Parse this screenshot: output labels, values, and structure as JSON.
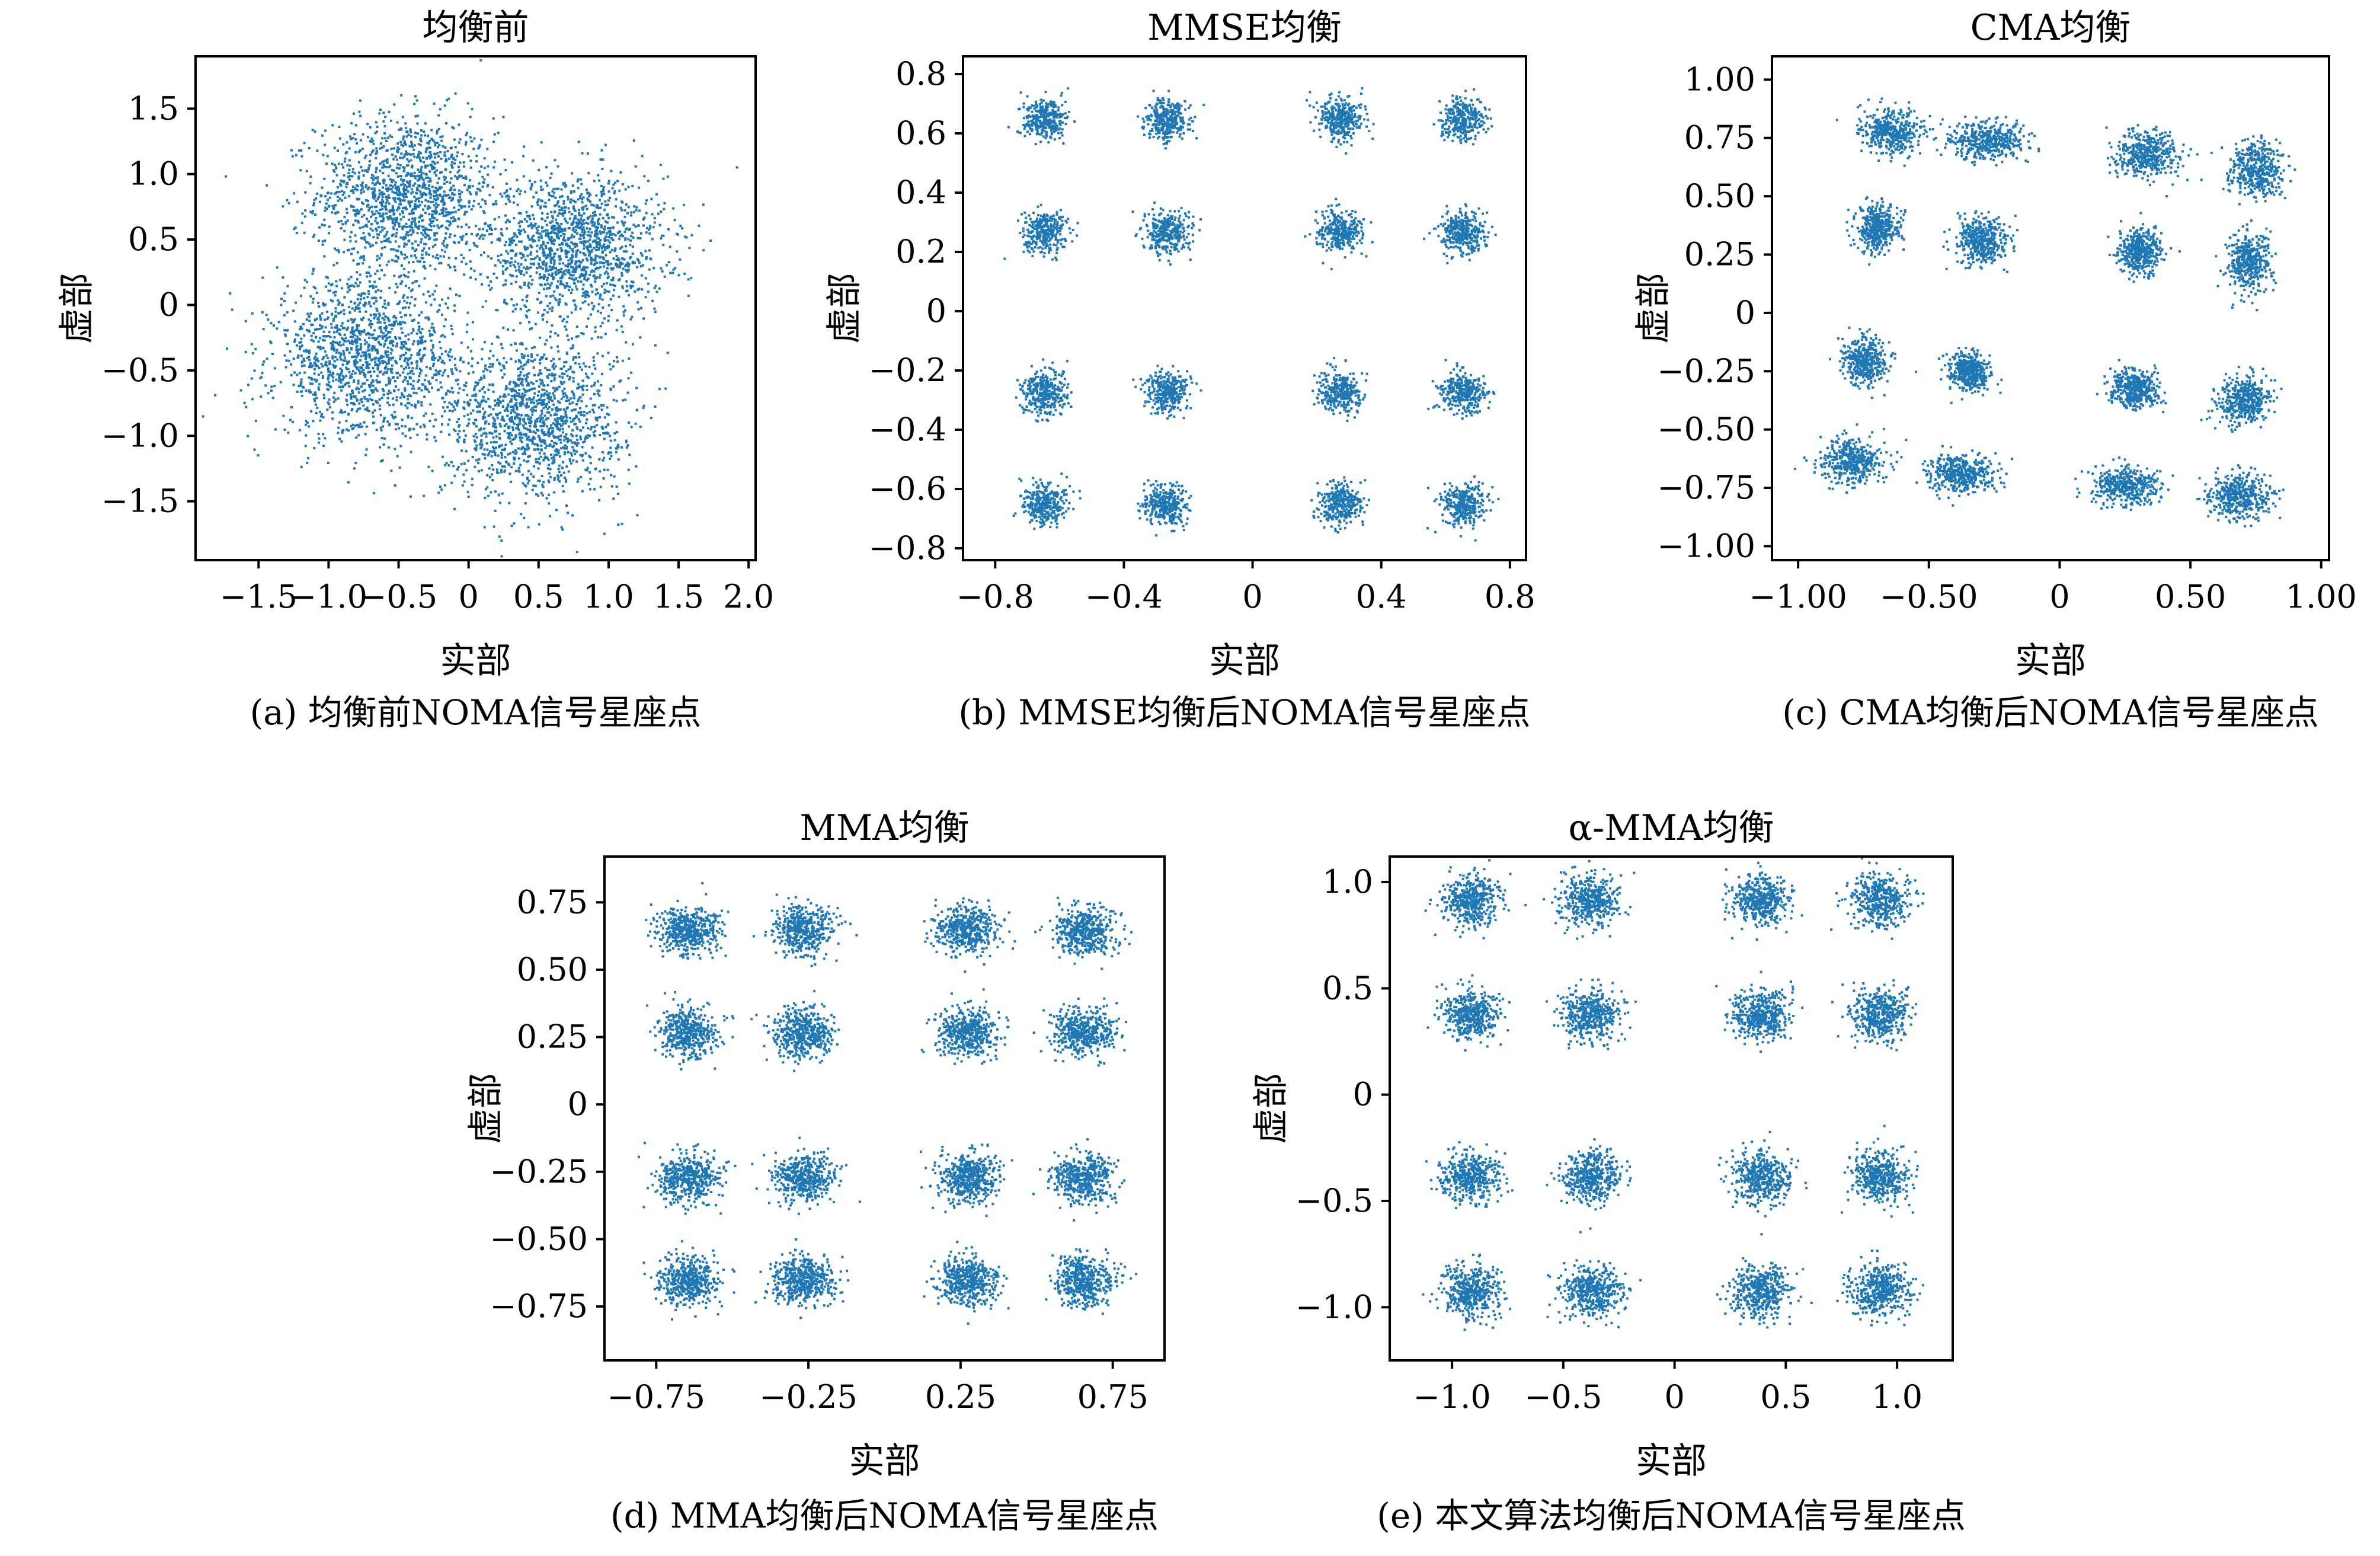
{
  "figure": {
    "background": "#ffffff",
    "point_color": "#1f77b4"
  },
  "chart_data": [
    {
      "id": "a",
      "type": "scatter",
      "title": "均衡前",
      "caption": "(a) 均衡前NOMA信号星座点",
      "xlabel": "实部",
      "ylabel": "虚部",
      "xlim": [
        -1.95,
        2.05
      ],
      "ylim": [
        -1.95,
        1.9
      ],
      "xticks": [
        -1.5,
        -1.0,
        -0.5,
        0,
        0.5,
        1.0,
        1.5,
        2.0
      ],
      "xtick_labels": [
        "−1.5",
        "−1.0",
        "−0.5",
        "0",
        "0.5",
        "1.0",
        "1.5",
        "2.0"
      ],
      "yticks": [
        1.5,
        1.0,
        0.5,
        0,
        -0.5,
        -1.0,
        -1.5
      ],
      "ytick_labels": [
        "1.5",
        "1.0",
        "0.5",
        "0",
        "−0.5",
        "−1.0",
        "−1.5"
      ],
      "grid": false,
      "legend": "none",
      "series": [
        {
          "clusters": [
            {
              "x": -0.45,
              "y": 0.85,
              "sx": 0.32,
              "sy": 0.3,
              "n": 1400
            },
            {
              "x": 0.75,
              "y": 0.45,
              "sx": 0.32,
              "sy": 0.28,
              "n": 1400
            },
            {
              "x": -0.75,
              "y": -0.4,
              "sx": 0.32,
              "sy": 0.3,
              "n": 1400
            },
            {
              "x": 0.45,
              "y": -0.85,
              "sx": 0.32,
              "sy": 0.3,
              "n": 1400
            }
          ]
        }
      ]
    },
    {
      "id": "b",
      "type": "scatter",
      "title": "MMSE均衡",
      "caption": "(b) MMSE均衡后NOMA信号星座点",
      "xlabel": "实部",
      "ylabel": "虚部",
      "xlim": [
        -0.9,
        0.85
      ],
      "ylim": [
        -0.84,
        0.86
      ],
      "xticks": [
        -0.8,
        -0.4,
        0,
        0.4,
        0.8
      ],
      "xtick_labels": [
        "−0.8",
        "−0.4",
        "0",
        "0.4",
        "0.8"
      ],
      "yticks": [
        0.8,
        0.6,
        0.4,
        0.2,
        0,
        -0.2,
        -0.4,
        -0.6,
        -0.8
      ],
      "ytick_labels": [
        "0.8",
        "0.6",
        "0.4",
        "0.2",
        "0",
        "−0.2",
        "−0.4",
        "−0.6",
        "−0.8"
      ],
      "grid": false,
      "legend": "none",
      "series": [
        {
          "grid_clusters": {
            "x": [
              -0.65,
              -0.27,
              0.27,
              0.65
            ],
            "y": [
              0.65,
              0.27,
              -0.27,
              -0.65
            ],
            "sx": 0.035,
            "sy": 0.035,
            "n": 320
          }
        }
      ]
    },
    {
      "id": "c",
      "type": "scatter",
      "title": "CMA均衡",
      "caption": "(c) CMA均衡后NOMA信号星座点",
      "xlabel": "实部",
      "ylabel": "虚部",
      "xlim": [
        -1.1,
        1.03
      ],
      "ylim": [
        -1.06,
        1.1
      ],
      "xticks": [
        -1.0,
        -0.5,
        0,
        0.5,
        1.0
      ],
      "xtick_labels": [
        "−1.00",
        "−0.50",
        "0",
        "0.50",
        "1.00"
      ],
      "yticks": [
        1.0,
        0.75,
        0.5,
        0.25,
        0,
        -0.25,
        -0.5,
        -0.75,
        -1.0
      ],
      "ytick_labels": [
        "1.00",
        "0.75",
        "0.50",
        "0.25",
        "0",
        "−0.25",
        "−0.50",
        "−0.75",
        "−1.00"
      ],
      "grid": false,
      "legend": "none",
      "series": [
        {
          "clusters": [
            {
              "x": -0.65,
              "y": 0.78,
              "sx": 0.06,
              "sy": 0.05,
              "n": 420
            },
            {
              "x": -0.28,
              "y": 0.74,
              "sx": 0.07,
              "sy": 0.04,
              "n": 420
            },
            {
              "x": 0.33,
              "y": 0.68,
              "sx": 0.06,
              "sy": 0.05,
              "n": 420
            },
            {
              "x": 0.75,
              "y": 0.62,
              "sx": 0.05,
              "sy": 0.06,
              "n": 420
            },
            {
              "x": -0.7,
              "y": 0.37,
              "sx": 0.04,
              "sy": 0.05,
              "n": 420
            },
            {
              "x": -0.3,
              "y": 0.32,
              "sx": 0.05,
              "sy": 0.05,
              "n": 420
            },
            {
              "x": 0.3,
              "y": 0.27,
              "sx": 0.04,
              "sy": 0.05,
              "n": 420
            },
            {
              "x": 0.72,
              "y": 0.22,
              "sx": 0.04,
              "sy": 0.06,
              "n": 420
            },
            {
              "x": -0.75,
              "y": -0.2,
              "sx": 0.04,
              "sy": 0.05,
              "n": 420
            },
            {
              "x": -0.35,
              "y": -0.25,
              "sx": 0.04,
              "sy": 0.04,
              "n": 420
            },
            {
              "x": 0.28,
              "y": -0.32,
              "sx": 0.05,
              "sy": 0.04,
              "n": 420
            },
            {
              "x": 0.7,
              "y": -0.37,
              "sx": 0.05,
              "sy": 0.05,
              "n": 420
            },
            {
              "x": -0.8,
              "y": -0.63,
              "sx": 0.06,
              "sy": 0.05,
              "n": 420
            },
            {
              "x": -0.38,
              "y": -0.68,
              "sx": 0.06,
              "sy": 0.04,
              "n": 420
            },
            {
              "x": 0.25,
              "y": -0.74,
              "sx": 0.06,
              "sy": 0.04,
              "n": 420
            },
            {
              "x": 0.68,
              "y": -0.78,
              "sx": 0.06,
              "sy": 0.05,
              "n": 420
            }
          ]
        }
      ]
    },
    {
      "id": "d",
      "type": "scatter",
      "title": "MMA均衡",
      "caption": "(d) MMA均衡后NOMA信号星座点",
      "xlabel": "实部",
      "ylabel": "虚部",
      "xlim": [
        -0.92,
        0.92
      ],
      "ylim": [
        -0.95,
        0.92
      ],
      "xticks": [
        -0.75,
        -0.25,
        0.25,
        0.75
      ],
      "xtick_labels": [
        "−0.75",
        "−0.25",
        "0.25",
        "0.75"
      ],
      "yticks": [
        0.75,
        0.5,
        0.25,
        0,
        -0.25,
        -0.5,
        -0.75
      ],
      "ytick_labels": [
        "0.75",
        "0.50",
        "0.25",
        "0",
        "−0.25",
        "−0.50",
        "−0.75"
      ],
      "grid": false,
      "legend": "none",
      "series": [
        {
          "grid_clusters": {
            "x": [
              -0.65,
              -0.27,
              0.27,
              0.65
            ],
            "y": [
              0.65,
              0.27,
              -0.27,
              -0.65
            ],
            "sx": 0.05,
            "sy": 0.045,
            "n": 460
          }
        }
      ]
    },
    {
      "id": "e",
      "type": "scatter",
      "title": "α-MMA均衡",
      "caption": "(e) 本文算法均衡后NOMA信号星座点",
      "xlabel": "实部",
      "ylabel": "虚部",
      "xlim": [
        -1.28,
        1.25
      ],
      "ylim": [
        -1.25,
        1.12
      ],
      "xticks": [
        -1.0,
        -0.5,
        0,
        0.5,
        1.0
      ],
      "xtick_labels": [
        "−1.0",
        "−0.5",
        "0",
        "0.5",
        "1.0"
      ],
      "yticks": [
        1.0,
        0.5,
        0,
        -0.5,
        -1.0
      ],
      "ytick_labels": [
        "1.0",
        "0.5",
        "0",
        "−0.5",
        "−1.0"
      ],
      "grid": false,
      "legend": "none",
      "series": [
        {
          "grid_clusters": {
            "x": [
              -0.92,
              -0.38,
              0.38,
              0.92
            ],
            "y": [
              0.92,
              0.38,
              -0.38,
              -0.92
            ],
            "sx": 0.065,
            "sy": 0.06,
            "n": 440
          }
        }
      ]
    }
  ]
}
